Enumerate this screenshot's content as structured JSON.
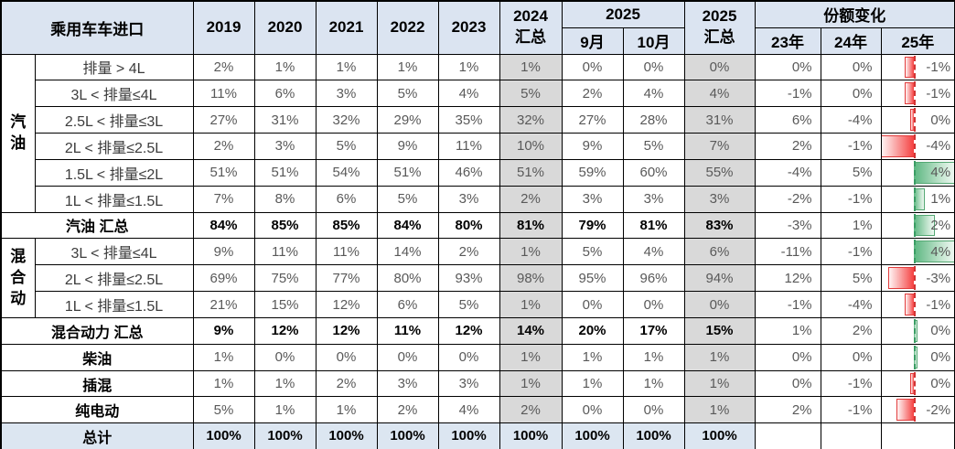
{
  "title": "乘用车车进口",
  "header": {
    "years": [
      "2019",
      "2020",
      "2021",
      "2022",
      "2023"
    ],
    "sum2024_line1": "2024",
    "sum2024_line2": "汇总",
    "group2025": "2025",
    "months": [
      "9月",
      "10月"
    ],
    "sum2025_line1": "2025",
    "sum2025_line2": "汇总",
    "share_change": "份额变化",
    "change_years": [
      "23年",
      "24年",
      "25年"
    ]
  },
  "colors": {
    "header_bg": "#dbe4f1",
    "gray_column_bg": "#d9d9d9",
    "total_row_bg": "#dce6f1",
    "bar_negative": "#e23c3c",
    "bar_positive": "#54a873"
  },
  "bar_axis_max": 4,
  "rows": [
    {
      "group": "汽油",
      "group_span": 6,
      "type": "sub",
      "label": "排量 > 4L",
      "cells": [
        "2%",
        "1%",
        "1%",
        "1%",
        "1%",
        "1%",
        "0%",
        "0%",
        "0%",
        "0%",
        "0%",
        "-1%"
      ],
      "bar": -1
    },
    {
      "type": "sub",
      "label": "3L < 排量≤4L",
      "cells": [
        "11%",
        "6%",
        "3%",
        "5%",
        "4%",
        "5%",
        "2%",
        "4%",
        "4%",
        "-1%",
        "0%",
        "-1%"
      ],
      "bar": -1
    },
    {
      "type": "sub",
      "label": "2.5L < 排量≤3L",
      "cells": [
        "27%",
        "31%",
        "32%",
        "29%",
        "35%",
        "32%",
        "27%",
        "28%",
        "31%",
        "6%",
        "-4%",
        "0%"
      ],
      "bar": -0.2
    },
    {
      "type": "sub",
      "label": "2L < 排量≤2.5L",
      "cells": [
        "2%",
        "3%",
        "5%",
        "9%",
        "11%",
        "10%",
        "9%",
        "5%",
        "7%",
        "2%",
        "-1%",
        "-4%"
      ],
      "bar": -4
    },
    {
      "type": "sub",
      "label": "1.5L < 排量≤2L",
      "cells": [
        "51%",
        "51%",
        "54%",
        "51%",
        "46%",
        "51%",
        "59%",
        "60%",
        "55%",
        "-4%",
        "5%",
        "4%"
      ],
      "bar": 4
    },
    {
      "type": "sub",
      "label": "1L < 排量≤1.5L",
      "cells": [
        "7%",
        "8%",
        "6%",
        "5%",
        "3%",
        "2%",
        "3%",
        "3%",
        "3%",
        "-2%",
        "-1%",
        "1%"
      ],
      "bar": 1
    },
    {
      "type": "summary",
      "label": "汽油 汇总",
      "cells": [
        "84%",
        "85%",
        "85%",
        "84%",
        "80%",
        "81%",
        "79%",
        "81%",
        "83%",
        "-3%",
        "1%",
        "2%"
      ],
      "bar": 2
    },
    {
      "group": "混合动",
      "group_span": 3,
      "type": "sub",
      "label": "3L < 排量≤4L",
      "cells": [
        "9%",
        "11%",
        "11%",
        "14%",
        "2%",
        "1%",
        "5%",
        "4%",
        "6%",
        "-11%",
        "-1%",
        "4%"
      ],
      "bar": 4
    },
    {
      "type": "sub",
      "label": "2L < 排量≤2.5L",
      "cells": [
        "69%",
        "75%",
        "77%",
        "80%",
        "93%",
        "98%",
        "95%",
        "96%",
        "94%",
        "12%",
        "5%",
        "-3%"
      ],
      "bar": -3
    },
    {
      "type": "sub",
      "label": "1L < 排量≤1.5L",
      "cells": [
        "21%",
        "15%",
        "12%",
        "6%",
        "5%",
        "1%",
        "0%",
        "0%",
        "0%",
        "-1%",
        "-4%",
        "-1%"
      ],
      "bar": -1
    },
    {
      "type": "summary",
      "label": "混合动力 汇总",
      "cells": [
        "9%",
        "12%",
        "12%",
        "11%",
        "12%",
        "14%",
        "20%",
        "17%",
        "15%",
        "1%",
        "2%",
        "0%"
      ],
      "bar": 0.2
    },
    {
      "type": "plain",
      "label": "柴油",
      "cells": [
        "1%",
        "0%",
        "0%",
        "0%",
        "0%",
        "1%",
        "1%",
        "1%",
        "1%",
        "0%",
        "0%",
        "0%"
      ],
      "bar": 0.2
    },
    {
      "type": "plain",
      "label": "插混",
      "cells": [
        "1%",
        "1%",
        "2%",
        "3%",
        "3%",
        "1%",
        "1%",
        "1%",
        "1%",
        "0%",
        "-1%",
        "0%"
      ],
      "bar": -0.2
    },
    {
      "type": "plain",
      "label": "纯电动",
      "cells": [
        "5%",
        "1%",
        "1%",
        "2%",
        "4%",
        "2%",
        "0%",
        "0%",
        "1%",
        "2%",
        "-1%",
        "-2%"
      ],
      "bar": -2
    },
    {
      "type": "total",
      "label": "总计",
      "cells": [
        "100%",
        "100%",
        "100%",
        "100%",
        "100%",
        "100%",
        "100%",
        "100%",
        "100%",
        "",
        "",
        ""
      ],
      "bar": null
    }
  ]
}
